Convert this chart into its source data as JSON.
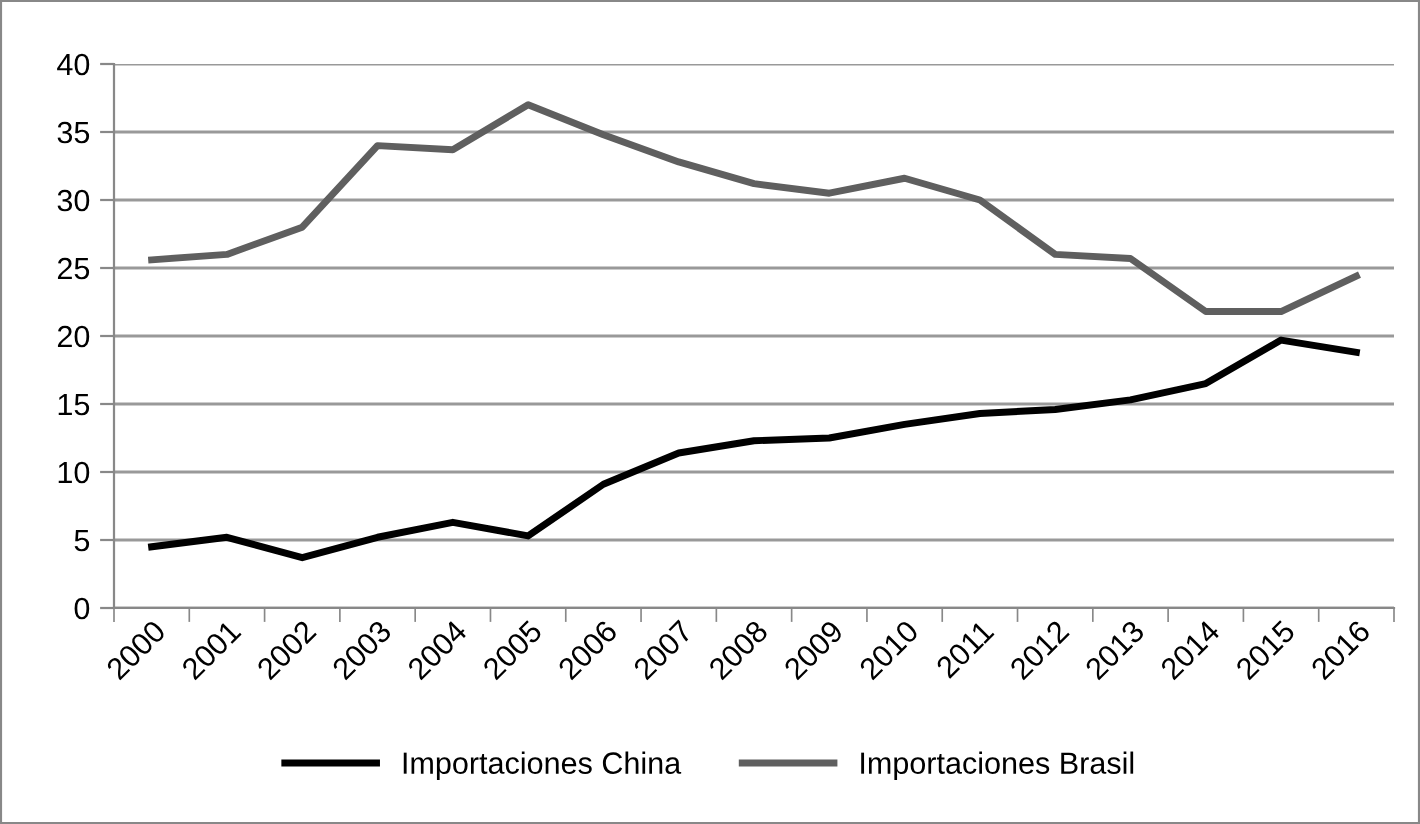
{
  "chart_data": {
    "type": "line",
    "categories": [
      "2000",
      "2001",
      "2002",
      "2003",
      "2004",
      "2005",
      "2006",
      "2007",
      "2008",
      "2009",
      "2010",
      "2011",
      "2012",
      "2013",
      "2014",
      "2015",
      "2016"
    ],
    "series": [
      {
        "name": "Importaciones China",
        "color": "#000000",
        "values": [
          4.5,
          5.2,
          3.7,
          5.2,
          6.3,
          5.3,
          9.1,
          11.4,
          12.3,
          12.5,
          13.5,
          14.3,
          14.6,
          15.3,
          16.5,
          19.7,
          18.8
        ]
      },
      {
        "name": "Importaciones Brasil",
        "color": "#5f5f5f",
        "values": [
          25.6,
          26.0,
          28.0,
          34.0,
          33.7,
          37.0,
          34.8,
          32.8,
          31.2,
          30.5,
          31.6,
          30.0,
          26.0,
          25.7,
          21.8,
          21.8,
          24.4
        ]
      }
    ],
    "ylim": [
      0,
      40
    ],
    "yticks": [
      0,
      5,
      10,
      15,
      20,
      25,
      30,
      35,
      40
    ],
    "grid": "y",
    "legend": "bottom",
    "marker": "none",
    "line_style": "solid"
  }
}
